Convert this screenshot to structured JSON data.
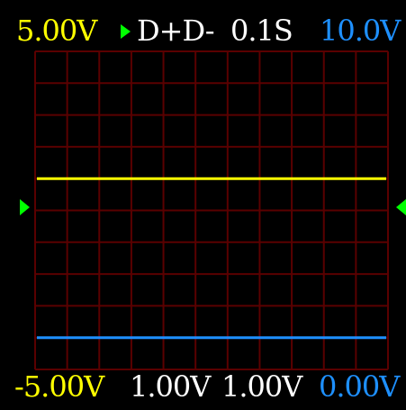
{
  "top": {
    "scale_left": "5.00V",
    "mode": "D+D-",
    "timebase": "0.1S",
    "scale_right": "10.0V"
  },
  "bottom": {
    "min_value": "-5.00V",
    "ch1_reading": "1.00V",
    "ch2_reading": "1.00V",
    "max_value": "0.00V"
  },
  "colors": {
    "channel1": "#ffff00",
    "channel2": "#1e90ff",
    "white": "#ffffff",
    "grid": "#5a0000",
    "marker": "#00ff00"
  },
  "grid": {
    "divisions_x": 11,
    "divisions_y": 10
  },
  "chart_data": {
    "type": "line",
    "series": [
      {
        "color": "#ffff00",
        "values": [
          1.0,
          1.0
        ]
      },
      {
        "color": "#1e90ff",
        "values": [
          1.0,
          1.0
        ]
      }
    ]
  }
}
